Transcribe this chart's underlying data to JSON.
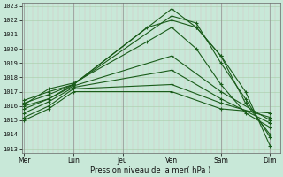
{
  "title": "",
  "xlabel": "Pression niveau de la mer( hPa )",
  "ylim": [
    1013,
    1023
  ],
  "yticks": [
    1013,
    1014,
    1015,
    1016,
    1017,
    1018,
    1019,
    1020,
    1021,
    1022,
    1023
  ],
  "x_day_labels": [
    "Mer",
    "Lun",
    "Jeu",
    "Ven",
    "Sam",
    "Dim"
  ],
  "x_day_positions": [
    0.0,
    1.0,
    2.0,
    3.0,
    4.0,
    5.0
  ],
  "bg_color": "#c8e8d8",
  "plot_bg_color": "#c8e8d8",
  "line_color": "#1a5c1a",
  "grid_color_v": "#d8c0c0",
  "grid_color_h": "#a8cca8",
  "grid_color_day": "#909090",
  "lines": [
    {
      "x": [
        0.0,
        0.5,
        1.0,
        3.0,
        3.5,
        4.0,
        4.5,
        5.0
      ],
      "y": [
        1016.0,
        1016.5,
        1017.5,
        1022.8,
        1021.5,
        1019.5,
        1017.0,
        1013.2
      ]
    },
    {
      "x": [
        0.0,
        0.5,
        1.0,
        3.0,
        3.5,
        4.0,
        4.5,
        5.0
      ],
      "y": [
        1016.2,
        1016.8,
        1017.5,
        1022.3,
        1021.8,
        1019.0,
        1016.5,
        1013.8
      ]
    },
    {
      "x": [
        0.0,
        0.5,
        1.0,
        2.5,
        3.0,
        3.5,
        4.0,
        4.5,
        5.0
      ],
      "y": [
        1016.4,
        1017.0,
        1017.5,
        1021.5,
        1022.0,
        1021.5,
        1019.5,
        1016.2,
        1014.0
      ]
    },
    {
      "x": [
        0.0,
        0.5,
        1.0,
        2.5,
        3.0,
        3.5,
        4.0,
        4.5,
        5.0
      ],
      "y": [
        1016.1,
        1017.2,
        1017.6,
        1020.5,
        1021.5,
        1020.0,
        1017.5,
        1015.5,
        1014.5
      ]
    },
    {
      "x": [
        0.0,
        0.5,
        1.0,
        3.0,
        4.0,
        5.0
      ],
      "y": [
        1015.8,
        1016.5,
        1017.4,
        1019.5,
        1017.0,
        1015.0
      ]
    },
    {
      "x": [
        0.0,
        0.5,
        1.0,
        3.0,
        4.0,
        5.0
      ],
      "y": [
        1015.5,
        1016.3,
        1017.3,
        1018.5,
        1016.5,
        1014.8
      ]
    },
    {
      "x": [
        0.0,
        0.5,
        1.0,
        3.0,
        4.0,
        5.0
      ],
      "y": [
        1015.2,
        1016.0,
        1017.2,
        1017.5,
        1016.2,
        1015.2
      ]
    },
    {
      "x": [
        0.0,
        0.5,
        1.0,
        3.0,
        4.0,
        5.0
      ],
      "y": [
        1015.0,
        1015.8,
        1017.0,
        1017.0,
        1015.8,
        1015.5
      ]
    }
  ],
  "n_vgrid": 50,
  "marker_size": 2.5,
  "line_width": 0.8,
  "xlim": [
    -0.05,
    5.2
  ]
}
